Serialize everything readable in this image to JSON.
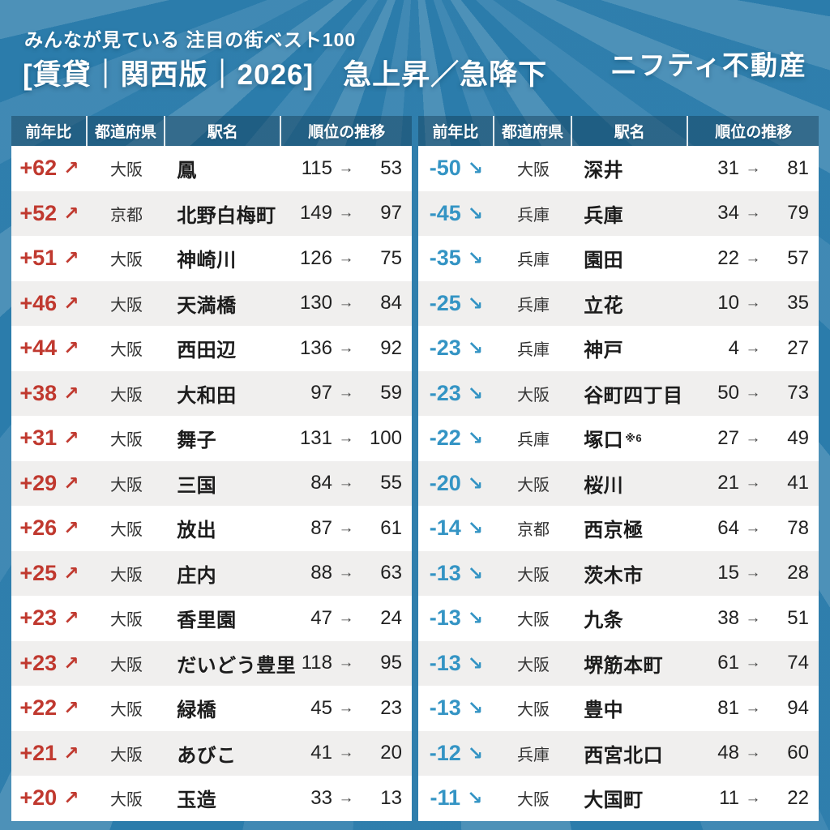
{
  "header": {
    "subtitle": "みんなが見ている 注目の街ベスト100",
    "title": "[賃貸｜関西版｜2026]　急上昇／急降下",
    "logo": "ニフティ不動産"
  },
  "glyphs": {
    "rank_arrow": "→",
    "up_arrow": "↗",
    "down_arrow": "↘"
  },
  "colors": {
    "background": "#2b7cab",
    "rise_accent": "#c0392f",
    "fall_accent": "#3494c4",
    "row_alt": "#f0efee",
    "header_band": "rgba(16,50,72,0.40)"
  },
  "chart_data": [
    {
      "type": "table",
      "name": "急上昇",
      "columns": [
        "前年比",
        "都道府県",
        "駅名",
        "順位の推移"
      ],
      "rows": [
        {
          "change": "+62",
          "arrow": "↗",
          "pref": "大阪",
          "station": "鳳",
          "note": "",
          "from": 115,
          "to": 53
        },
        {
          "change": "+52",
          "arrow": "↗",
          "pref": "京都",
          "station": "北野白梅町",
          "note": "",
          "from": 149,
          "to": 97
        },
        {
          "change": "+51",
          "arrow": "↗",
          "pref": "大阪",
          "station": "神崎川",
          "note": "",
          "from": 126,
          "to": 75
        },
        {
          "change": "+46",
          "arrow": "↗",
          "pref": "大阪",
          "station": "天満橋",
          "note": "",
          "from": 130,
          "to": 84
        },
        {
          "change": "+44",
          "arrow": "↗",
          "pref": "大阪",
          "station": "西田辺",
          "note": "",
          "from": 136,
          "to": 92
        },
        {
          "change": "+38",
          "arrow": "↗",
          "pref": "大阪",
          "station": "大和田",
          "note": "",
          "from": 97,
          "to": 59
        },
        {
          "change": "+31",
          "arrow": "↗",
          "pref": "大阪",
          "station": "舞子",
          "note": "",
          "from": 131,
          "to": 100
        },
        {
          "change": "+29",
          "arrow": "↗",
          "pref": "大阪",
          "station": "三国",
          "note": "",
          "from": 84,
          "to": 55
        },
        {
          "change": "+26",
          "arrow": "↗",
          "pref": "大阪",
          "station": "放出",
          "note": "",
          "from": 87,
          "to": 61
        },
        {
          "change": "+25",
          "arrow": "↗",
          "pref": "大阪",
          "station": "庄内",
          "note": "",
          "from": 88,
          "to": 63
        },
        {
          "change": "+23",
          "arrow": "↗",
          "pref": "大阪",
          "station": "香里園",
          "note": "",
          "from": 47,
          "to": 24
        },
        {
          "change": "+23",
          "arrow": "↗",
          "pref": "大阪",
          "station": "だいどう豊里",
          "note": "",
          "from": 118,
          "to": 95
        },
        {
          "change": "+22",
          "arrow": "↗",
          "pref": "大阪",
          "station": "緑橋",
          "note": "",
          "from": 45,
          "to": 23
        },
        {
          "change": "+21",
          "arrow": "↗",
          "pref": "大阪",
          "station": "あびこ",
          "note": "",
          "from": 41,
          "to": 20
        },
        {
          "change": "+20",
          "arrow": "↗",
          "pref": "大阪",
          "station": "玉造",
          "note": "",
          "from": 33,
          "to": 13
        }
      ]
    },
    {
      "type": "table",
      "name": "急降下",
      "columns": [
        "前年比",
        "都道府県",
        "駅名",
        "順位の推移"
      ],
      "rows": [
        {
          "change": "-50",
          "arrow": "↘",
          "pref": "大阪",
          "station": "深井",
          "note": "",
          "from": 31,
          "to": 81
        },
        {
          "change": "-45",
          "arrow": "↘",
          "pref": "兵庫",
          "station": "兵庫",
          "note": "",
          "from": 34,
          "to": 79
        },
        {
          "change": "-35",
          "arrow": "↘",
          "pref": "兵庫",
          "station": "園田",
          "note": "",
          "from": 22,
          "to": 57
        },
        {
          "change": "-25",
          "arrow": "↘",
          "pref": "兵庫",
          "station": "立花",
          "note": "",
          "from": 10,
          "to": 35
        },
        {
          "change": "-23",
          "arrow": "↘",
          "pref": "兵庫",
          "station": "神戸",
          "note": "",
          "from": 4,
          "to": 27
        },
        {
          "change": "-23",
          "arrow": "↘",
          "pref": "大阪",
          "station": "谷町四丁目",
          "note": "",
          "from": 50,
          "to": 73
        },
        {
          "change": "-22",
          "arrow": "↘",
          "pref": "兵庫",
          "station": "塚口",
          "note": "※6",
          "from": 27,
          "to": 49
        },
        {
          "change": "-20",
          "arrow": "↘",
          "pref": "大阪",
          "station": "桜川",
          "note": "",
          "from": 21,
          "to": 41
        },
        {
          "change": "-14",
          "arrow": "↘",
          "pref": "京都",
          "station": "西京極",
          "note": "",
          "from": 64,
          "to": 78
        },
        {
          "change": "-13",
          "arrow": "↘",
          "pref": "大阪",
          "station": "茨木市",
          "note": "",
          "from": 15,
          "to": 28
        },
        {
          "change": "-13",
          "arrow": "↘",
          "pref": "大阪",
          "station": "九条",
          "note": "",
          "from": 38,
          "to": 51
        },
        {
          "change": "-13",
          "arrow": "↘",
          "pref": "大阪",
          "station": "堺筋本町",
          "note": "",
          "from": 61,
          "to": 74
        },
        {
          "change": "-13",
          "arrow": "↘",
          "pref": "大阪",
          "station": "豊中",
          "note": "",
          "from": 81,
          "to": 94
        },
        {
          "change": "-12",
          "arrow": "↘",
          "pref": "兵庫",
          "station": "西宮北口",
          "note": "",
          "from": 48,
          "to": 60
        },
        {
          "change": "-11",
          "arrow": "↘",
          "pref": "大阪",
          "station": "大国町",
          "note": "",
          "from": 11,
          "to": 22
        }
      ]
    }
  ]
}
